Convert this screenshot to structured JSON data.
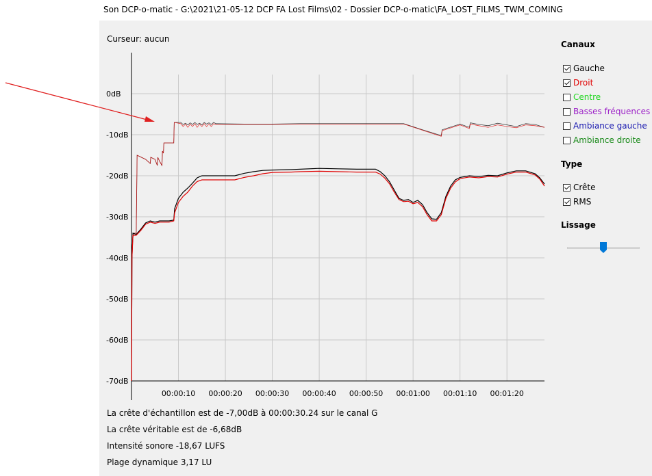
{
  "window": {
    "title": "Son DCP-o-matic - G:\\2021\\21-05-12 DCP FA Lost Films\\02 - Dossier DCP-o-matic\\FA_LOST_FILMS_TWM_COMING"
  },
  "cursor_label": "Curseur: aucun",
  "sidebar": {
    "channels_heading": "Canaux",
    "channels": [
      {
        "label": "Gauche",
        "checked": true,
        "color": "#000000"
      },
      {
        "label": "Droit",
        "checked": true,
        "color": "#e00000"
      },
      {
        "label": "Centre",
        "checked": false,
        "color": "#22d622"
      },
      {
        "label": "Basses fréquences",
        "checked": false,
        "color": "#9b1fc7"
      },
      {
        "label": "Ambiance gauche",
        "checked": false,
        "color": "#1a1ab0"
      },
      {
        "label": "Ambiance droite",
        "checked": false,
        "color": "#1a8a1a"
      }
    ],
    "type_heading": "Type",
    "types": [
      {
        "label": "Crête",
        "checked": true
      },
      {
        "label": "RMS",
        "checked": true
      }
    ],
    "smoothing_heading": "Lissage",
    "smoothing_level": 0.5
  },
  "stats": {
    "sample_peak": "La crête d'échantillon est de -7,00dB à 00:00:30.24 sur le canal G",
    "true_peak": "La crête véritable est de -6,68dB",
    "loudness": "Intensité sonore -18,67 LUFS",
    "dynamic_range": "Plage dynamique 3,17 LU"
  },
  "chart_data": {
    "type": "line",
    "y_unit": "dB",
    "ylim": [
      -70,
      0
    ],
    "xlim": [
      0,
      88
    ],
    "x_tick_labels": [
      "00:00:10",
      "00:00:20",
      "00:00:30",
      "00:00:40",
      "00:00:50",
      "00:01:00",
      "00:01:10",
      "00:01:20"
    ],
    "y_tick_labels": [
      "0dB",
      "-10dB",
      "-20dB",
      "-30dB",
      "-40dB",
      "-50dB",
      "-60dB",
      "-70dB"
    ],
    "grid": true,
    "series": [
      {
        "color": "#000000",
        "kind": "peak",
        "points": [
          [
            0,
            -70
          ],
          [
            0.1,
            -38
          ],
          [
            0.4,
            -34
          ],
          [
            1,
            -34
          ],
          [
            1.2,
            -15
          ],
          [
            3,
            -16
          ],
          [
            4,
            -17
          ],
          [
            4.1,
            -15.5
          ],
          [
            5,
            -16
          ],
          [
            5.5,
            -17.5
          ],
          [
            5.6,
            -15.5
          ],
          [
            6,
            -16.5
          ],
          [
            6.5,
            -17.5
          ],
          [
            6.6,
            -14
          ],
          [
            6.8,
            -14.5
          ],
          [
            6.9,
            -12
          ],
          [
            9,
            -12
          ],
          [
            9.1,
            -7
          ],
          [
            10.5,
            -7
          ],
          [
            11,
            -7.5
          ],
          [
            11.5,
            -7.2
          ],
          [
            12,
            -7.6
          ],
          [
            12.5,
            -7.1
          ],
          [
            13,
            -7.5
          ],
          [
            13.5,
            -7
          ],
          [
            14,
            -7.5
          ],
          [
            14.5,
            -7.2
          ],
          [
            15,
            -7.6
          ],
          [
            15.5,
            -7
          ],
          [
            16,
            -7.4
          ],
          [
            16.5,
            -7.1
          ],
          [
            17,
            -7.5
          ],
          [
            17.5,
            -7
          ],
          [
            18,
            -7.3
          ],
          [
            24,
            -7.4
          ],
          [
            30,
            -7.4
          ],
          [
            36,
            -7.3
          ],
          [
            44,
            -7.3
          ],
          [
            52,
            -7.3
          ],
          [
            58,
            -7.3
          ],
          [
            62,
            -8.8
          ],
          [
            66,
            -10.2
          ],
          [
            66.2,
            -8.8
          ],
          [
            70,
            -7.4
          ],
          [
            72,
            -8.2
          ],
          [
            72.2,
            -7.1
          ],
          [
            74,
            -7.5
          ],
          [
            76,
            -7.8
          ],
          [
            78,
            -7.2
          ],
          [
            80,
            -7.6
          ],
          [
            82,
            -8
          ],
          [
            84,
            -7.3
          ],
          [
            86,
            -7.5
          ],
          [
            88,
            -8.2
          ]
        ]
      },
      {
        "color": "#e00000",
        "kind": "peak",
        "points": [
          [
            0,
            -70
          ],
          [
            0.1,
            -38
          ],
          [
            0.4,
            -34
          ],
          [
            1,
            -34
          ],
          [
            1.2,
            -15
          ],
          [
            3,
            -16
          ],
          [
            4,
            -17
          ],
          [
            4.1,
            -15.5
          ],
          [
            5,
            -16
          ],
          [
            5.5,
            -17.5
          ],
          [
            5.6,
            -15.5
          ],
          [
            6,
            -16.5
          ],
          [
            6.5,
            -17.5
          ],
          [
            6.6,
            -14
          ],
          [
            6.8,
            -14.5
          ],
          [
            6.9,
            -12
          ],
          [
            9,
            -12
          ],
          [
            9.1,
            -7
          ],
          [
            10.5,
            -7.3
          ],
          [
            11,
            -8
          ],
          [
            11.5,
            -7.4
          ],
          [
            12,
            -8.2
          ],
          [
            12.5,
            -7.4
          ],
          [
            13,
            -8
          ],
          [
            13.5,
            -7.3
          ],
          [
            14,
            -8.2
          ],
          [
            14.5,
            -7.4
          ],
          [
            15,
            -8
          ],
          [
            15.5,
            -7.3
          ],
          [
            16,
            -8
          ],
          [
            16.5,
            -7.4
          ],
          [
            17,
            -8
          ],
          [
            17.5,
            -7.3
          ],
          [
            18,
            -7.6
          ],
          [
            24,
            -7.5
          ],
          [
            30,
            -7.5
          ],
          [
            36,
            -7.4
          ],
          [
            44,
            -7.4
          ],
          [
            52,
            -7.4
          ],
          [
            58,
            -7.4
          ],
          [
            62,
            -8.9
          ],
          [
            66,
            -10.4
          ],
          [
            66.2,
            -9
          ],
          [
            70,
            -7.6
          ],
          [
            72,
            -8.5
          ],
          [
            72.2,
            -7.4
          ],
          [
            74,
            -7.8
          ],
          [
            76,
            -8.2
          ],
          [
            78,
            -7.6
          ],
          [
            80,
            -8
          ],
          [
            82,
            -8.3
          ],
          [
            84,
            -7.6
          ],
          [
            86,
            -7.8
          ],
          [
            88,
            -8.2
          ]
        ]
      },
      {
        "color": "#000000",
        "kind": "rms",
        "points": [
          [
            0,
            -70
          ],
          [
            0.1,
            -40
          ],
          [
            0.3,
            -34
          ],
          [
            1,
            -34.3
          ],
          [
            2,
            -33
          ],
          [
            3,
            -31.5
          ],
          [
            4,
            -31
          ],
          [
            5,
            -31.3
          ],
          [
            6,
            -31
          ],
          [
            7,
            -31
          ],
          [
            8,
            -31
          ],
          [
            9,
            -30.8
          ],
          [
            9.2,
            -28
          ],
          [
            10,
            -25.5
          ],
          [
            11,
            -24
          ],
          [
            12,
            -23
          ],
          [
            13,
            -21.8
          ],
          [
            14,
            -20.5
          ],
          [
            15,
            -20
          ],
          [
            18,
            -20
          ],
          [
            22,
            -20
          ],
          [
            24,
            -19.4
          ],
          [
            26,
            -19
          ],
          [
            28,
            -18.7
          ],
          [
            30,
            -18.6
          ],
          [
            34,
            -18.5
          ],
          [
            36,
            -18.4
          ],
          [
            40,
            -18.2
          ],
          [
            44,
            -18.3
          ],
          [
            48,
            -18.4
          ],
          [
            52,
            -18.4
          ],
          [
            53,
            -19
          ],
          [
            54,
            -20
          ],
          [
            55,
            -21.5
          ],
          [
            56,
            -23.5
          ],
          [
            57,
            -25.5
          ],
          [
            58,
            -26
          ],
          [
            59,
            -25.8
          ],
          [
            60,
            -26.5
          ],
          [
            61,
            -26
          ],
          [
            62,
            -27
          ],
          [
            63,
            -29
          ],
          [
            64,
            -30.5
          ],
          [
            65,
            -30.6
          ],
          [
            66,
            -29
          ],
          [
            67,
            -25
          ],
          [
            68,
            -22.5
          ],
          [
            69,
            -21
          ],
          [
            70,
            -20.4
          ],
          [
            72,
            -20
          ],
          [
            74,
            -20.2
          ],
          [
            76,
            -19.9
          ],
          [
            78,
            -20
          ],
          [
            80,
            -19.3
          ],
          [
            82,
            -18.8
          ],
          [
            84,
            -18.8
          ],
          [
            86,
            -19.5
          ],
          [
            87,
            -20.5
          ],
          [
            88,
            -22
          ]
        ]
      },
      {
        "color": "#e00000",
        "kind": "rms",
        "points": [
          [
            0,
            -70
          ],
          [
            0.1,
            -40
          ],
          [
            0.3,
            -34.5
          ],
          [
            1,
            -34.5
          ],
          [
            2,
            -33.3
          ],
          [
            3,
            -31.8
          ],
          [
            4,
            -31.3
          ],
          [
            5,
            -31.6
          ],
          [
            6,
            -31.3
          ],
          [
            7,
            -31.3
          ],
          [
            8,
            -31.3
          ],
          [
            9,
            -31
          ],
          [
            9.2,
            -29
          ],
          [
            10,
            -26.5
          ],
          [
            11,
            -25
          ],
          [
            12,
            -24
          ],
          [
            13,
            -22.5
          ],
          [
            14,
            -21.4
          ],
          [
            15,
            -21
          ],
          [
            18,
            -21
          ],
          [
            22,
            -21
          ],
          [
            24,
            -20.4
          ],
          [
            26,
            -20
          ],
          [
            28,
            -19.5
          ],
          [
            30,
            -19.2
          ],
          [
            34,
            -19.1
          ],
          [
            36,
            -19
          ],
          [
            40,
            -18.9
          ],
          [
            44,
            -19
          ],
          [
            48,
            -19.1
          ],
          [
            52,
            -19.1
          ],
          [
            53,
            -19.6
          ],
          [
            54,
            -20.6
          ],
          [
            55,
            -22
          ],
          [
            56,
            -24
          ],
          [
            57,
            -25.8
          ],
          [
            58,
            -26.3
          ],
          [
            59,
            -26.2
          ],
          [
            60,
            -26.8
          ],
          [
            61,
            -26.5
          ],
          [
            62,
            -27.5
          ],
          [
            63,
            -29.5
          ],
          [
            64,
            -31
          ],
          [
            65,
            -31
          ],
          [
            66,
            -29.5
          ],
          [
            67,
            -25.5
          ],
          [
            68,
            -23
          ],
          [
            69,
            -21.5
          ],
          [
            70,
            -20.7
          ],
          [
            72,
            -20.3
          ],
          [
            74,
            -20.5
          ],
          [
            76,
            -20.2
          ],
          [
            78,
            -20.3
          ],
          [
            80,
            -19.6
          ],
          [
            82,
            -19.1
          ],
          [
            84,
            -19.1
          ],
          [
            86,
            -19.8
          ],
          [
            87,
            -20.8
          ],
          [
            88,
            -22.5
          ]
        ]
      }
    ]
  }
}
